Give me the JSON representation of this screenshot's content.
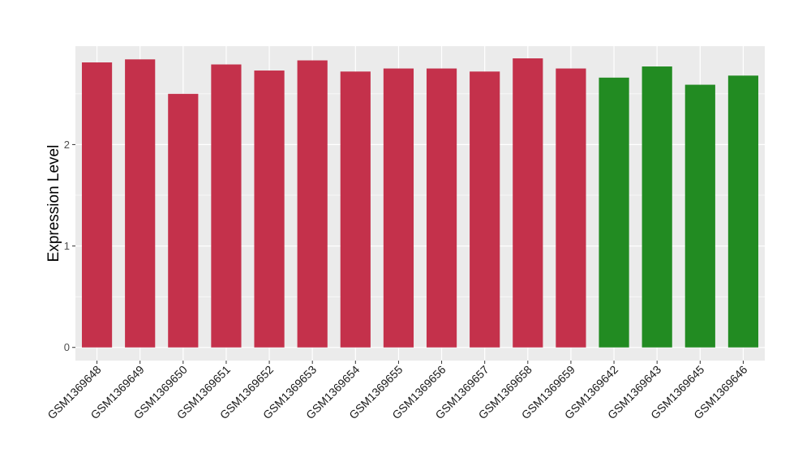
{
  "chart_data": {
    "type": "bar",
    "title": "",
    "xlabel": "",
    "ylabel": "Expression Level",
    "ylim": [
      -0.13,
      2.97
    ],
    "yticks": [
      0,
      1,
      2
    ],
    "grid": true,
    "legend": "none",
    "categories": [
      "GSM1369648",
      "GSM1369649",
      "GSM1369650",
      "GSM1369651",
      "GSM1369652",
      "GSM1369653",
      "GSM1369654",
      "GSM1369655",
      "GSM1369656",
      "GSM1369657",
      "GSM1369658",
      "GSM1369659",
      "GSM1369642",
      "GSM1369643",
      "GSM1369645",
      "GSM1369646"
    ],
    "values": [
      2.81,
      2.84,
      2.5,
      2.79,
      2.73,
      2.83,
      2.72,
      2.75,
      2.75,
      2.72,
      2.85,
      2.75,
      2.66,
      2.77,
      2.59,
      2.68
    ],
    "bar_colors": [
      "#C4314B",
      "#C4314B",
      "#C4314B",
      "#C4314B",
      "#C4314B",
      "#C4314B",
      "#C4314B",
      "#C4314B",
      "#C4314B",
      "#C4314B",
      "#C4314B",
      "#C4314B",
      "#228B22",
      "#228B22",
      "#228B22",
      "#228B22"
    ],
    "panel_background": "#EBEBEB",
    "gridline_color": "#FFFFFF"
  }
}
